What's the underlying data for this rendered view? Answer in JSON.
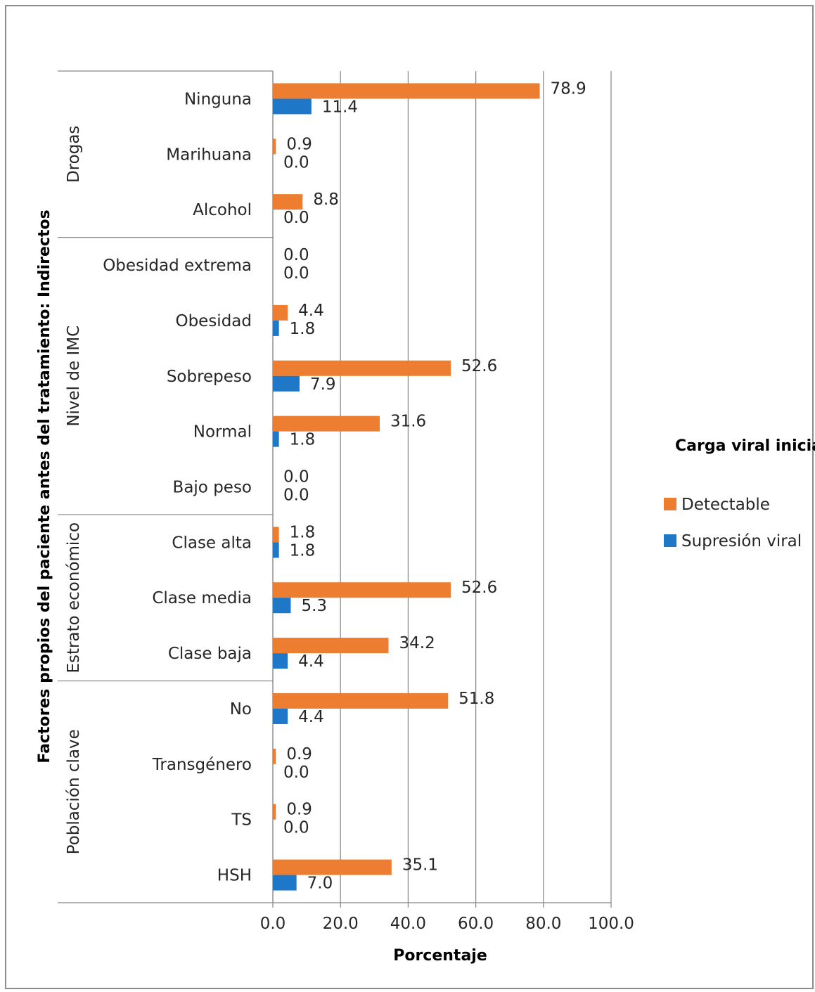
{
  "chart_data": {
    "type": "bar",
    "orientation": "horizontal",
    "xlabel": "Porcentaje",
    "ylabel": "Factores propios del paciente antes del tratamiento: Indirectos",
    "xlim": [
      0,
      100
    ],
    "x_ticks": [
      "0.0",
      "20.0",
      "40.0",
      "60.0",
      "80.0",
      "100.0"
    ],
    "grid": true,
    "legend_title": "Carga viral inicial",
    "legend_position": "right",
    "groups": [
      {
        "name": "Drogas",
        "categories": [
          "Ninguna",
          "Marihuana",
          "Alcohol"
        ]
      },
      {
        "name": "Nivel de IMC",
        "categories": [
          "Obesidad extrema",
          "Obesidad",
          "Sobrepeso",
          "Normal",
          "Bajo peso"
        ]
      },
      {
        "name": "Estrato económico",
        "categories": [
          "Clase alta",
          "Clase media",
          "Clase baja"
        ]
      },
      {
        "name": "Población clave",
        "categories": [
          "No",
          "Transgénero",
          "TS",
          "HSH"
        ]
      }
    ],
    "categories": [
      "Ninguna",
      "Marihuana",
      "Alcohol",
      "Obesidad extrema",
      "Obesidad",
      "Sobrepeso",
      "Normal",
      "Bajo peso",
      "Clase alta",
      "Clase media",
      "Clase baja",
      "No",
      "Transgénero",
      "TS",
      "HSH"
    ],
    "series": [
      {
        "name": "Detectable",
        "color": "#ED7D31",
        "values": [
          78.9,
          0.9,
          8.8,
          0.0,
          4.4,
          52.6,
          31.6,
          0.0,
          1.8,
          52.6,
          34.2,
          51.8,
          0.9,
          0.9,
          35.1
        ],
        "labels": [
          "78.9",
          "0.9",
          "8.8",
          "0.0",
          "4.4",
          "52.6",
          "31.6",
          "0.0",
          "1.8",
          "52.6",
          "34.2",
          "51.8",
          "0.9",
          "0.9",
          "35.1"
        ]
      },
      {
        "name": "Supresión viral",
        "color": "#1F77C8",
        "values": [
          11.4,
          0.0,
          0.0,
          0.0,
          1.8,
          7.9,
          1.8,
          0.0,
          1.8,
          5.3,
          4.4,
          4.4,
          0.0,
          0.0,
          7.0
        ],
        "labels": [
          "11.4",
          "0.0",
          "0.0",
          "0.0",
          "1.8",
          "7.9",
          "1.8",
          "0.0",
          "1.8",
          "5.3",
          "4.4",
          "4.4",
          "0.0",
          "0.0",
          "7.0"
        ]
      }
    ]
  }
}
